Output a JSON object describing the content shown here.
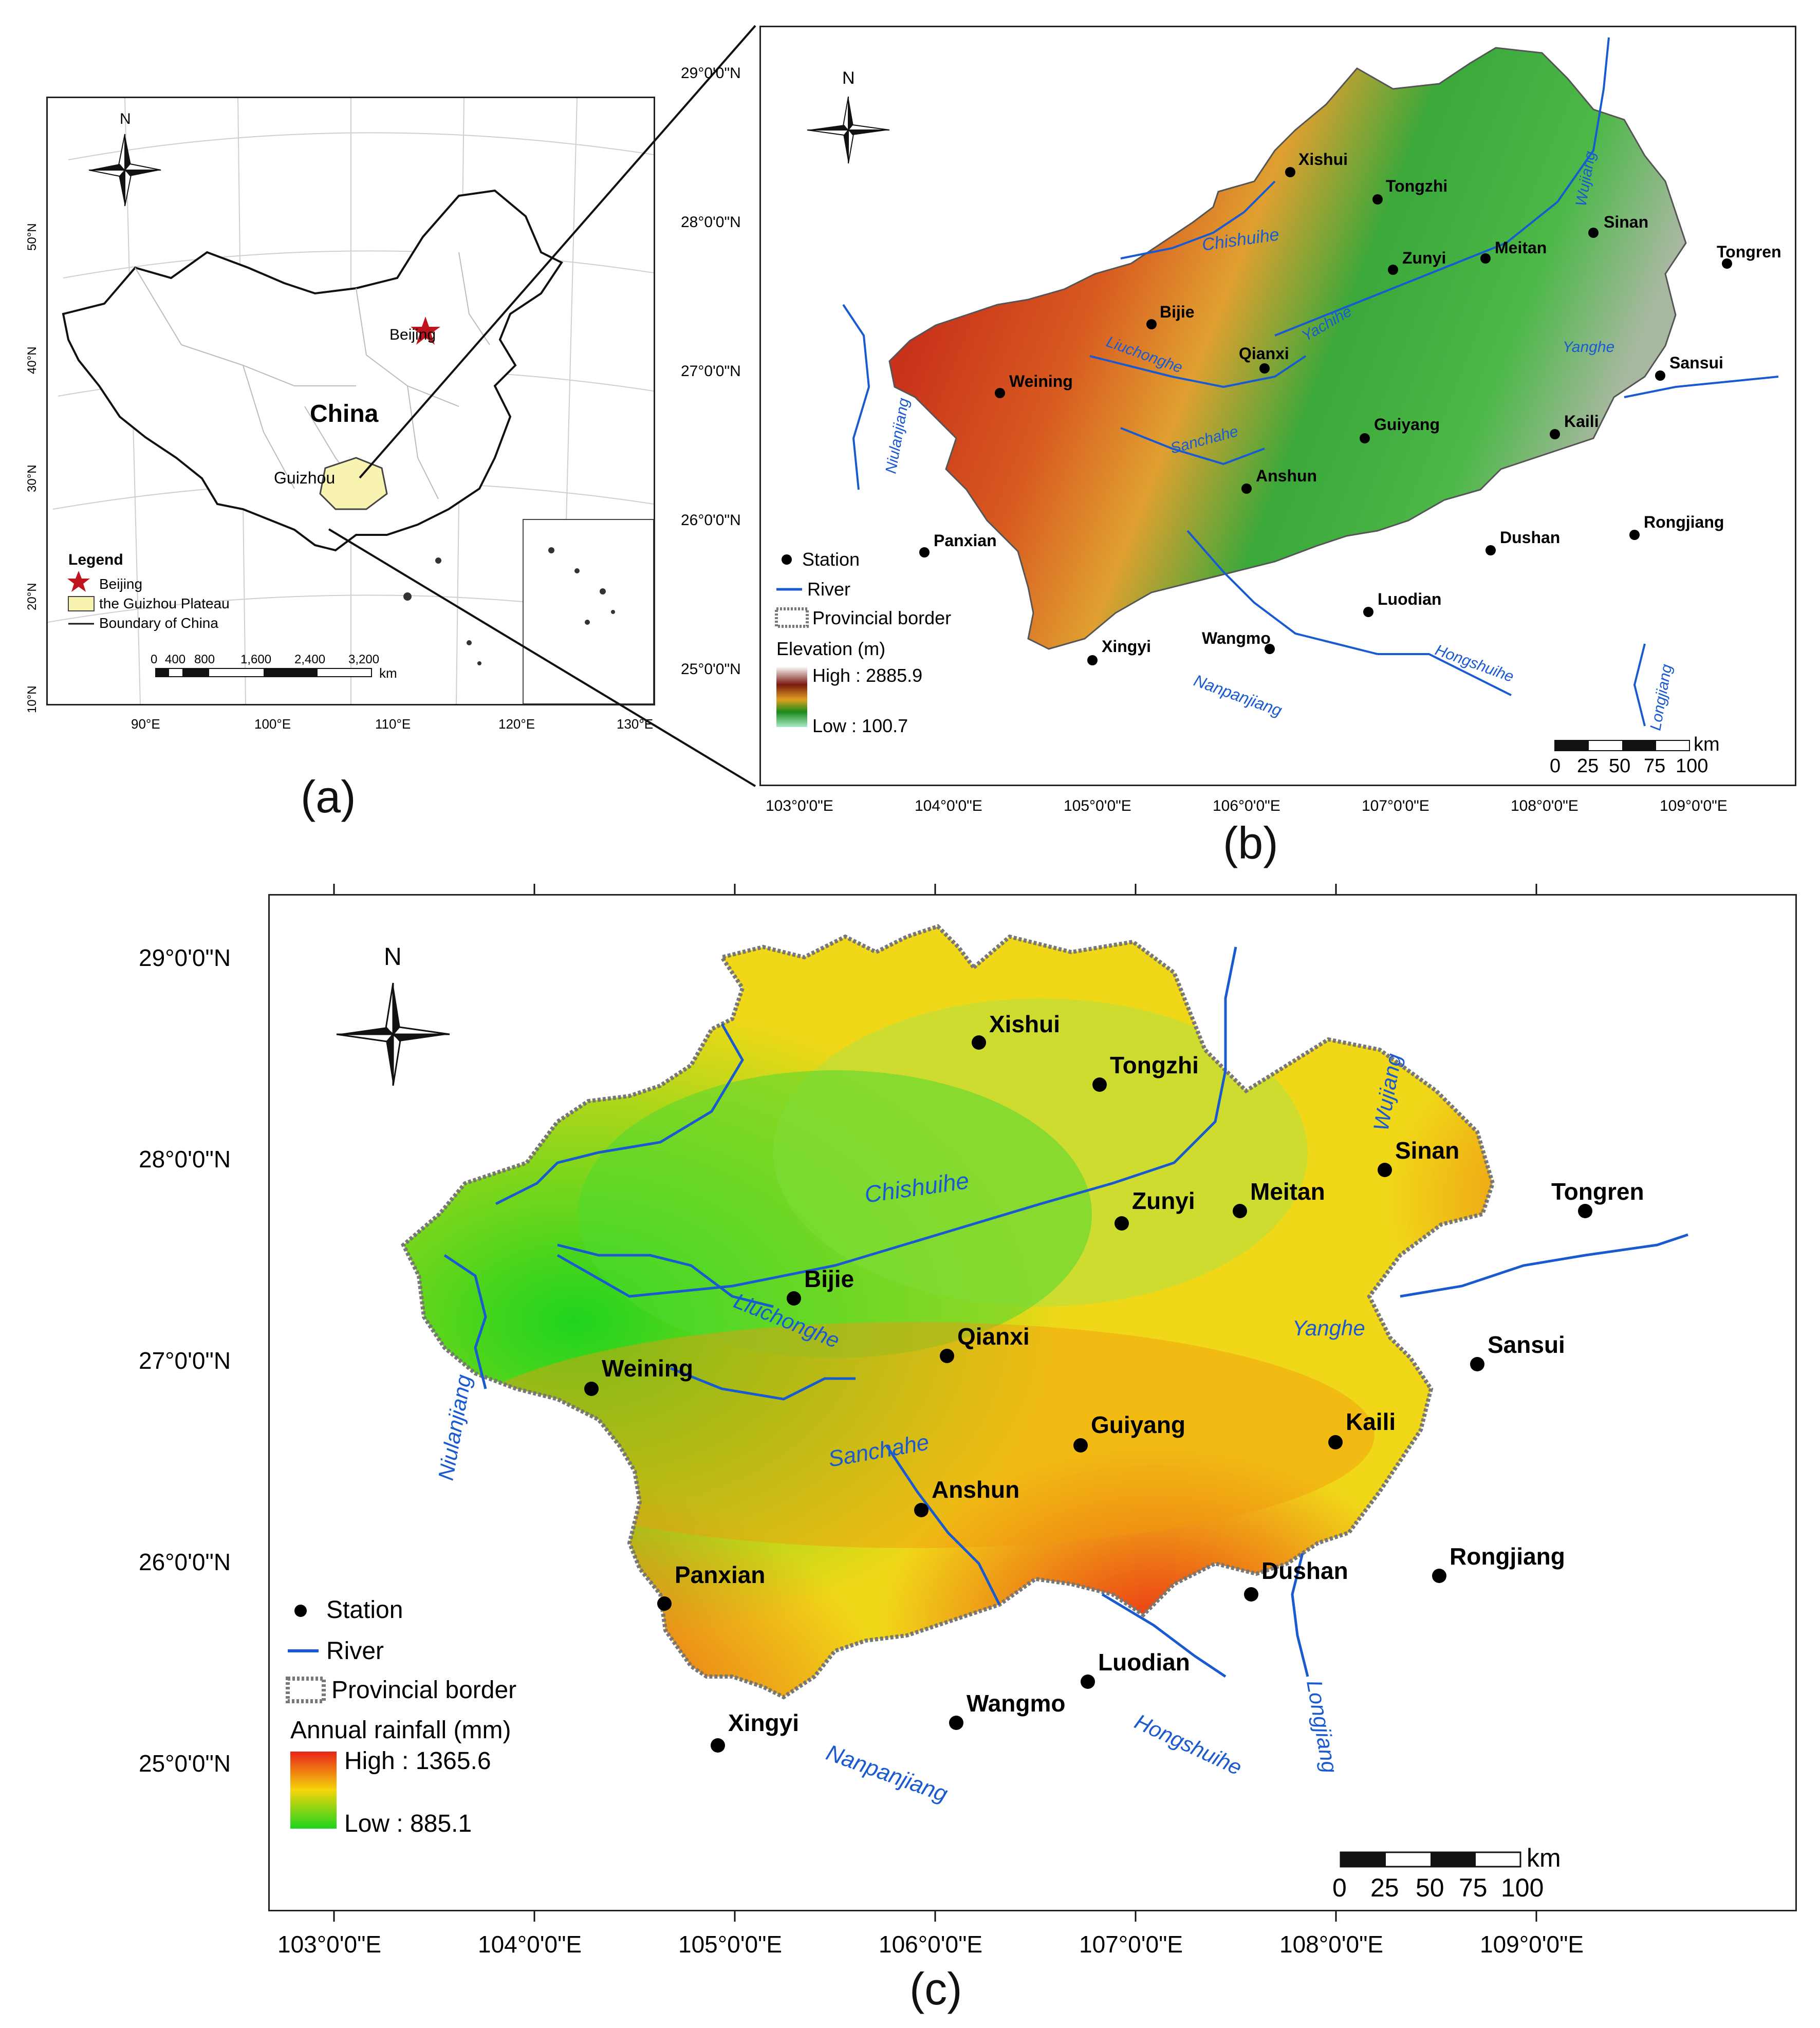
{
  "panel_a": {
    "caption": "(a)",
    "north": "N",
    "country_label": "China",
    "city_label": "Beijing",
    "province_label": "Guizhou",
    "legend_title": "Legend",
    "legend_items": [
      "Beijing",
      "the Guizhou Plateau",
      "Boundary of China"
    ],
    "scale_ticks": [
      "0",
      "400",
      "800",
      "1,600",
      "2,400",
      "3,200"
    ],
    "scale_unit": "km",
    "lon_labels": [
      "90°E",
      "100°E",
      "110°E",
      "120°E",
      "130°E"
    ],
    "lat_labels": [
      "50°N",
      "40°N",
      "30°N",
      "20°N",
      "10°N"
    ],
    "colors": {
      "guizhou_fill": "#f8f3b0",
      "star": "#c0141c"
    }
  },
  "panel_b": {
    "caption": "(b)",
    "north": "N",
    "lat_labels": [
      "29°0'0\"N",
      "28°0'0\"N",
      "27°0'0\"N",
      "26°0'0\"N",
      "25°0'0\"N"
    ],
    "lon_labels": [
      "103°0'0\"E",
      "104°0'0\"E",
      "105°0'0\"E",
      "106°0'0\"E",
      "107°0'0\"E",
      "108°0'0\"E",
      "109°0'0\"E"
    ],
    "legend_station": "Station",
    "legend_river": "River",
    "legend_border": "Provincial border",
    "legend_title": "Elevation (m)",
    "legend_high": "High : 2885.9",
    "legend_low": "Low : 100.7",
    "scale_ticks": [
      "0",
      "25",
      "50",
      "75",
      "100"
    ],
    "scale_unit": "km",
    "stations": [
      "Xishui",
      "Tongzhi",
      "Sinan",
      "Zunyi",
      "Meitan",
      "Tongren",
      "Bijie",
      "Qianxi",
      "Weining",
      "Sansui",
      "Guiyang",
      "Kaili",
      "Anshun",
      "Dushan",
      "Rongjiang",
      "Panxian",
      "Luodian",
      "Xingyi",
      "Wangmo"
    ],
    "rivers": [
      "Chishuihe",
      "Wujiang",
      "Yachihe",
      "Liuchonghe",
      "Yanghe",
      "Niulanjiang",
      "Sanchahe",
      "Hongshuihe",
      "Longjiang",
      "Nanpanjiang"
    ],
    "colors": {
      "high": "#ffffff",
      "mid_high": "#7a1a10",
      "mid": "#c8301a",
      "mid_low": "#3aa83a",
      "low": "#a8ecc8"
    }
  },
  "panel_c": {
    "caption": "(c)",
    "north": "N",
    "lat_labels": [
      "29°0'0\"N",
      "28°0'0\"N",
      "27°0'0\"N",
      "26°0'0\"N",
      "25°0'0\"N"
    ],
    "lon_labels": [
      "103°0'0\"E",
      "104°0'0\"E",
      "105°0'0\"E",
      "106°0'0\"E",
      "107°0'0\"E",
      "108°0'0\"E",
      "109°0'0\"E"
    ],
    "legend_station": "Station",
    "legend_river": "River",
    "legend_border": "Provincial border",
    "legend_title": "Annual rainfall (mm)",
    "legend_high": "High : 1365.6",
    "legend_low": "Low : 885.1",
    "scale_ticks": [
      "0",
      "25",
      "50",
      "75",
      "100"
    ],
    "scale_unit": "km",
    "stations": [
      "Xishui",
      "Tongzhi",
      "Zunyi",
      "Meitan",
      "Sinan",
      "Tongren",
      "Bijie",
      "Qianxi",
      "Weining",
      "Sansui",
      "Guiyang",
      "Kaili",
      "Anshun",
      "Rongjiang",
      "Dushan",
      "Panxian",
      "Luodian",
      "Wangmo",
      "Xingyi"
    ],
    "rivers": [
      "Chishuihe",
      "Wujiang",
      "Liuchonghe",
      "Yanghe",
      "Niulanjiang",
      "Sanchahe",
      "Hongshuihe",
      "Longjiang",
      "Nanpanjiang"
    ],
    "colors": {
      "high": "#e8231a",
      "mid": "#f5d50a",
      "low": "#1ed41e",
      "river": "#1a5ad0"
    }
  }
}
